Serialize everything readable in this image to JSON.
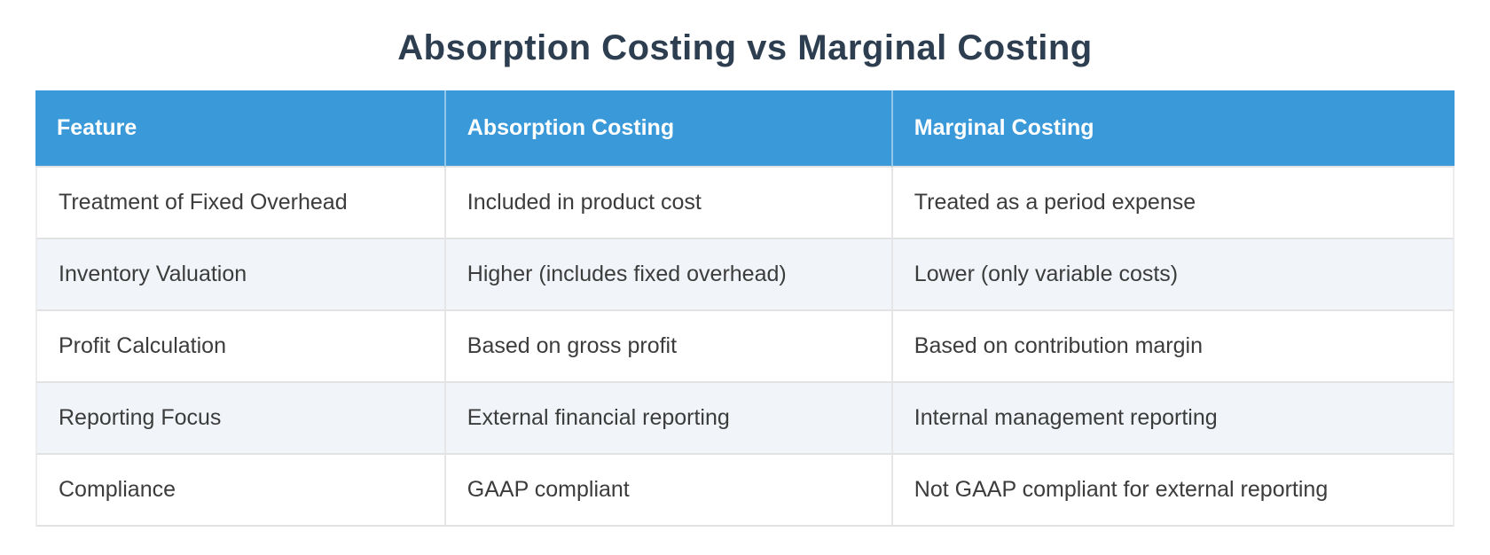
{
  "page": {
    "title": "Absorption Costing vs Marginal Costing"
  },
  "colors": {
    "header_bg": "#3a99d9",
    "header_text": "#ffffff",
    "title_text": "#2c3e50",
    "stripe_bg": "#f1f5f9",
    "body_text": "#3c3c3c",
    "border": "#e2e2e2"
  },
  "table": {
    "columns": [
      "Feature",
      "Absorption Costing",
      "Marginal Costing"
    ],
    "rows": [
      {
        "feature": "Treatment of Fixed Overhead",
        "absorption": "Included in product cost",
        "marginal": "Treated as a period expense"
      },
      {
        "feature": "Inventory Valuation",
        "absorption": "Higher (includes fixed overhead)",
        "marginal": "Lower (only variable costs)"
      },
      {
        "feature": "Profit Calculation",
        "absorption": "Based on gross profit",
        "marginal": "Based on contribution margin"
      },
      {
        "feature": "Reporting Focus",
        "absorption": "External financial reporting",
        "marginal": "Internal management reporting"
      },
      {
        "feature": "Compliance",
        "absorption": "GAAP compliant",
        "marginal": "Not GAAP compliant for external reporting"
      }
    ]
  }
}
